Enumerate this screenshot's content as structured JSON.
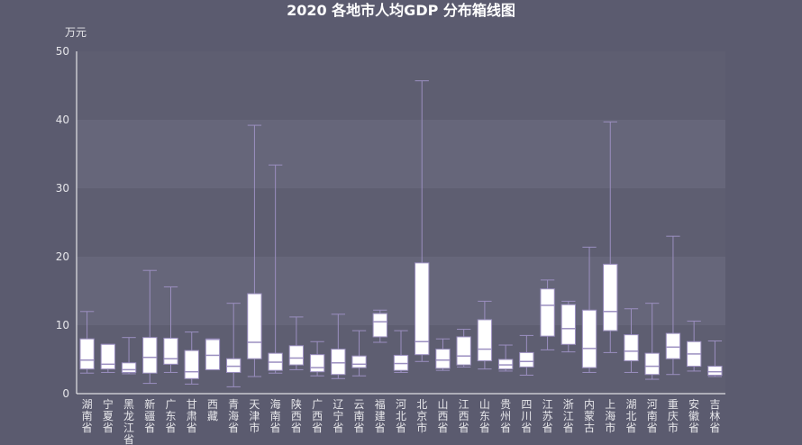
{
  "chart_data": {
    "type": "boxplot",
    "title": "2020 各地市人均GDP 分布箱线图",
    "yunit": "万元",
    "ylim": [
      0,
      50
    ],
    "yticks": [
      0,
      10,
      20,
      30,
      40,
      50
    ],
    "grid": "alternating horizontal bands",
    "colors": {
      "background": "#5b5b6f",
      "band_dark": "#5e5e71",
      "band_light": "#66667a",
      "box_fill": "#ffffff",
      "whisker": "#9b8fc0",
      "median": "#9b8fc0",
      "axis": "#ffffff",
      "text": "#e6e6ea"
    },
    "categories": [
      "湖南省",
      "宁夏省",
      "黑龙江省",
      "新疆省",
      "广东省",
      "甘肃省",
      "西藏",
      "青海省",
      "天津市",
      "海南省",
      "陕西省",
      "广西省",
      "辽宁省",
      "云南省",
      "福建省",
      "河北省",
      "北京市",
      "山西省",
      "江西省",
      "山东省",
      "贵州省",
      "四川省",
      "江苏省",
      "浙江省",
      "内蒙古",
      "上海市",
      "湖北省",
      "河南省",
      "重庆市",
      "安徽省",
      "吉林省"
    ],
    "boxes": [
      {
        "min": 3.0,
        "q1": 3.6,
        "median": 4.9,
        "q3": 8.0,
        "max": 12.0
      },
      {
        "min": 3.1,
        "q1": 3.6,
        "median": 4.3,
        "q3": 7.2,
        "max": 7.2
      },
      {
        "min": 2.9,
        "q1": 3.1,
        "median": 3.5,
        "q3": 4.5,
        "max": 8.2
      },
      {
        "min": 1.5,
        "q1": 3.0,
        "median": 5.3,
        "q3": 8.2,
        "max": 18.0
      },
      {
        "min": 3.1,
        "q1": 4.3,
        "median": 5.1,
        "q3": 8.1,
        "max": 15.6
      },
      {
        "min": 1.4,
        "q1": 2.2,
        "median": 3.2,
        "q3": 6.3,
        "max": 9.0
      },
      {
        "min": 3.5,
        "q1": 3.5,
        "median": 5.6,
        "q3": 7.9,
        "max": 8.0
      },
      {
        "min": 1.0,
        "q1": 3.1,
        "median": 4.0,
        "q3": 5.1,
        "max": 13.2
      },
      {
        "min": 2.5,
        "q1": 5.1,
        "median": 7.5,
        "q3": 14.6,
        "max": 39.2
      },
      {
        "min": 3.0,
        "q1": 3.4,
        "median": 4.6,
        "q3": 5.9,
        "max": 33.4
      },
      {
        "min": 3.5,
        "q1": 4.2,
        "median": 5.2,
        "q3": 7.0,
        "max": 11.2
      },
      {
        "min": 2.6,
        "q1": 3.2,
        "median": 3.8,
        "q3": 5.7,
        "max": 7.6
      },
      {
        "min": 2.2,
        "q1": 2.8,
        "median": 4.5,
        "q3": 6.5,
        "max": 11.6
      },
      {
        "min": 2.6,
        "q1": 3.8,
        "median": 4.3,
        "q3": 5.5,
        "max": 9.2
      },
      {
        "min": 7.5,
        "q1": 8.3,
        "median": 10.5,
        "q3": 11.7,
        "max": 12.2
      },
      {
        "min": 3.1,
        "q1": 3.4,
        "median": 4.4,
        "q3": 5.6,
        "max": 9.2
      },
      {
        "min": 4.7,
        "q1": 5.7,
        "median": 7.6,
        "q3": 19.1,
        "max": 45.7
      },
      {
        "min": 3.4,
        "q1": 3.7,
        "median": 4.9,
        "q3": 6.5,
        "max": 8.0
      },
      {
        "min": 3.9,
        "q1": 4.2,
        "median": 5.5,
        "q3": 8.3,
        "max": 9.4
      },
      {
        "min": 3.6,
        "q1": 4.8,
        "median": 6.5,
        "q3": 10.8,
        "max": 13.5
      },
      {
        "min": 3.3,
        "q1": 3.6,
        "median": 4.2,
        "q3": 5.0,
        "max": 7.1
      },
      {
        "min": 2.7,
        "q1": 3.9,
        "median": 4.7,
        "q3": 6.0,
        "max": 8.5
      },
      {
        "min": 6.4,
        "q1": 8.4,
        "median": 12.9,
        "q3": 15.3,
        "max": 16.6
      },
      {
        "min": 6.1,
        "q1": 7.2,
        "median": 9.5,
        "q3": 13.0,
        "max": 13.5
      },
      {
        "min": 3.1,
        "q1": 3.8,
        "median": 6.6,
        "q3": 12.2,
        "max": 21.4
      },
      {
        "min": 6.0,
        "q1": 9.2,
        "median": 12.0,
        "q3": 18.9,
        "max": 39.7
      },
      {
        "min": 3.1,
        "q1": 4.8,
        "median": 6.2,
        "q3": 8.6,
        "max": 12.4
      },
      {
        "min": 2.1,
        "q1": 2.8,
        "median": 4.0,
        "q3": 5.9,
        "max": 13.2
      },
      {
        "min": 2.8,
        "q1": 5.1,
        "median": 6.8,
        "q3": 8.8,
        "max": 23.0
      },
      {
        "min": 3.3,
        "q1": 4.0,
        "median": 5.8,
        "q3": 7.6,
        "max": 10.6
      },
      {
        "min": 2.5,
        "q1": 2.7,
        "median": 3.2,
        "q3": 4.0,
        "max": 7.7
      }
    ]
  }
}
